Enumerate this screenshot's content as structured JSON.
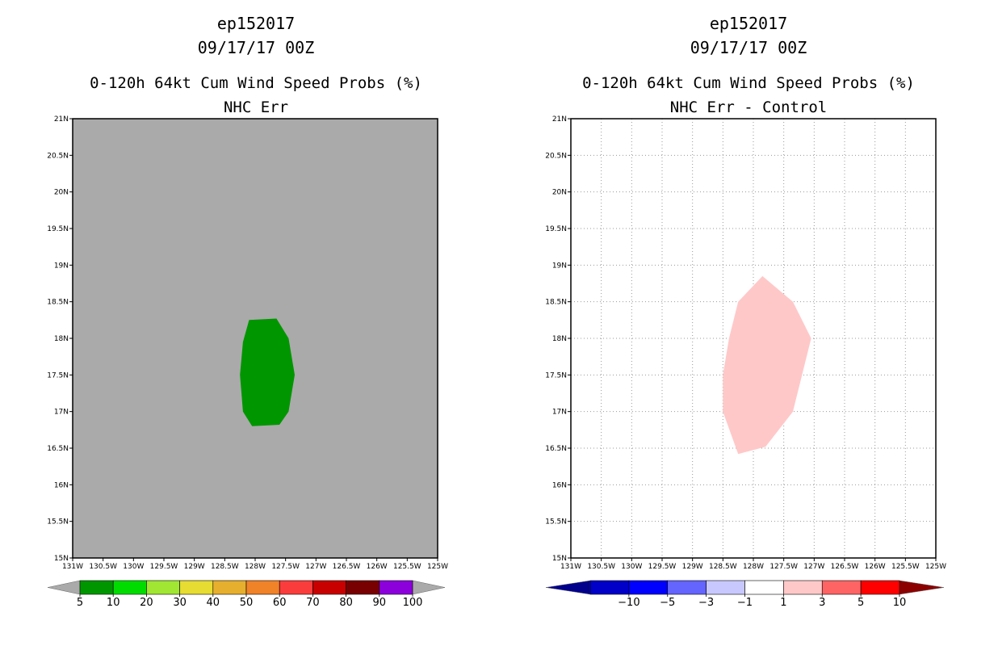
{
  "chart_data": [
    {
      "type": "map",
      "title_lines": [
        "ep152017",
        "09/17/17 00Z",
        "0-120h 64kt Cum Wind Speed Probs (%)",
        "NHC Err"
      ],
      "background_color": "#aaaaaa",
      "grid": false,
      "x_ticks": [
        "131W",
        "130.5W",
        "130W",
        "129.5W",
        "129W",
        "128.5W",
        "128W",
        "127.5W",
        "127W",
        "126.5W",
        "126W",
        "125.5W",
        "125W"
      ],
      "y_ticks": [
        "21N",
        "20.5N",
        "20N",
        "19.5N",
        "19N",
        "18.5N",
        "18N",
        "17.5N",
        "17N",
        "16.5N",
        "16N",
        "15.5N",
        "15N"
      ],
      "xlim": [
        -131,
        -125
      ],
      "ylim": [
        15,
        21
      ],
      "shapes": [
        {
          "name": "prob-5-10-region",
          "fill": "#009600",
          "points": [
            [
              -128.25,
              17.5
            ],
            [
              -128.2,
              17.95
            ],
            [
              -128.1,
              18.25
            ],
            [
              -127.65,
              18.27
            ],
            [
              -127.45,
              18.0
            ],
            [
              -127.35,
              17.5
            ],
            [
              -127.45,
              17.0
            ],
            [
              -127.6,
              16.82
            ],
            [
              -128.05,
              16.8
            ],
            [
              -128.2,
              17.0
            ]
          ]
        }
      ],
      "colorbar": {
        "labels": [
          "5",
          "10",
          "20",
          "30",
          "40",
          "50",
          "60",
          "70",
          "80",
          "90",
          "100"
        ],
        "colors": [
          "#009600",
          "#00dc00",
          "#a0e632",
          "#e6dc32",
          "#e6af2d",
          "#f08228",
          "#fa3c3c",
          "#c80000",
          "#780000",
          "#8c00dc"
        ],
        "under_color": "#aaaaaa",
        "over_color": "#aaaaaa"
      }
    },
    {
      "type": "map",
      "title_lines": [
        "ep152017",
        "09/17/17 00Z",
        "0-120h 64kt Cum Wind Speed Probs (%)",
        "NHC Err - Control"
      ],
      "background_color": "#ffffff",
      "grid": true,
      "x_ticks": [
        "131W",
        "130.5W",
        "130W",
        "129.5W",
        "129W",
        "128.5W",
        "128W",
        "127.5W",
        "127W",
        "126.5W",
        "126W",
        "125.5W",
        "125W"
      ],
      "y_ticks": [
        "21N",
        "20.5N",
        "20N",
        "19.5N",
        "19N",
        "18.5N",
        "18N",
        "17.5N",
        "17N",
        "16.5N",
        "16N",
        "15.5N",
        "15N"
      ],
      "xlim": [
        -131,
        -125
      ],
      "ylim": [
        15,
        21
      ],
      "shapes": [
        {
          "name": "diff-1-3-region",
          "fill": "#ffc8c8",
          "points": [
            [
              -128.5,
              17.5
            ],
            [
              -128.4,
              18.0
            ],
            [
              -128.25,
              18.5
            ],
            [
              -127.85,
              18.85
            ],
            [
              -127.35,
              18.5
            ],
            [
              -127.05,
              18.0
            ],
            [
              -127.35,
              17.0
            ],
            [
              -127.8,
              16.52
            ],
            [
              -128.25,
              16.42
            ],
            [
              -128.5,
              17.0
            ]
          ]
        }
      ],
      "colorbar": {
        "labels": [
          "-10",
          "-5",
          "-3",
          "-1",
          "1",
          "3",
          "5",
          "10"
        ],
        "colors": [
          "#0000c8",
          "#0000ff",
          "#6464ff",
          "#c8c8ff",
          "#ffffff",
          "#ffc8c8",
          "#ff6464",
          "#ff0000"
        ],
        "under_color": "#00008c",
        "over_color": "#8c0000"
      }
    }
  ]
}
